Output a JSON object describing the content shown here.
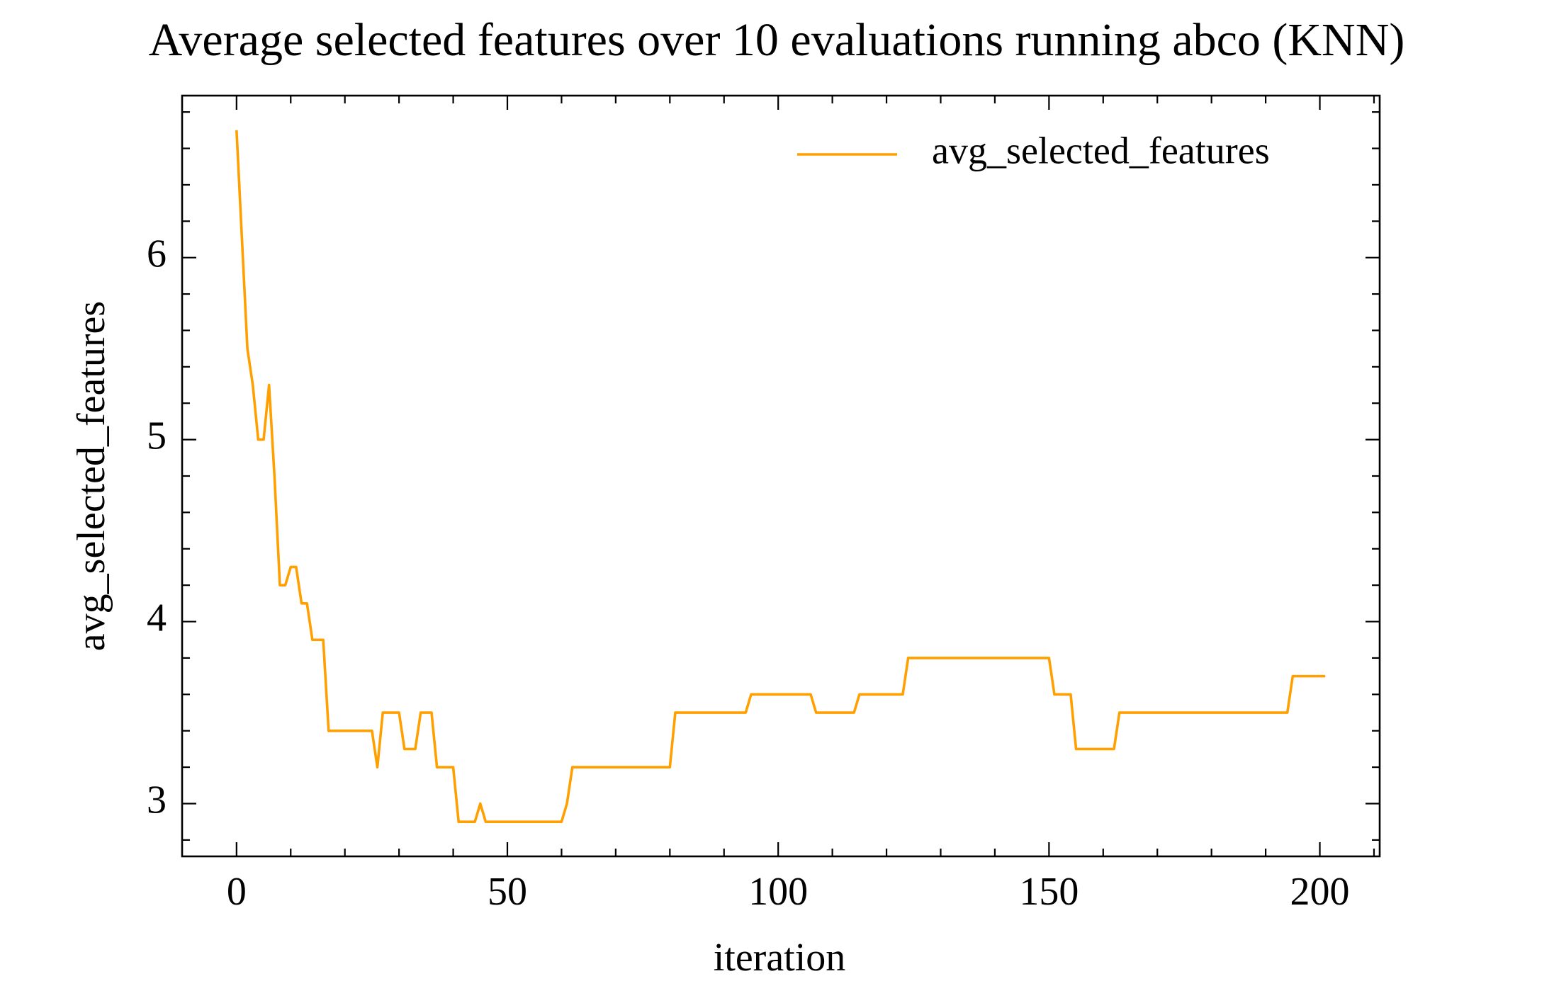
{
  "chart_data": {
    "type": "line",
    "title": "Average selected features over 10 evaluations running abco (KNN)",
    "xlabel": "iteration",
    "ylabel": "avg_selected_features",
    "x": [
      0,
      1,
      2,
      3,
      4,
      5,
      6,
      7,
      8,
      9,
      10,
      11,
      12,
      13,
      14,
      15,
      16,
      17,
      18,
      19,
      20,
      21,
      22,
      23,
      24,
      25,
      26,
      27,
      28,
      29,
      30,
      31,
      32,
      33,
      34,
      35,
      36,
      37,
      38,
      39,
      40,
      41,
      42,
      43,
      44,
      45,
      46,
      47,
      48,
      49,
      50,
      51,
      52,
      53,
      54,
      55,
      56,
      57,
      58,
      59,
      60,
      61,
      62,
      63,
      64,
      65,
      66,
      67,
      68,
      69,
      70,
      71,
      72,
      73,
      74,
      75,
      76,
      77,
      78,
      79,
      80,
      81,
      82,
      83,
      84,
      85,
      86,
      87,
      88,
      89,
      90,
      91,
      92,
      93,
      94,
      95,
      96,
      97,
      98,
      99,
      100,
      101,
      102,
      103,
      104,
      105,
      106,
      107,
      108,
      109,
      110,
      111,
      112,
      113,
      114,
      115,
      116,
      117,
      118,
      119,
      120,
      121,
      122,
      123,
      124,
      125,
      126,
      127,
      128,
      129,
      130,
      131,
      132,
      133,
      134,
      135,
      136,
      137,
      138,
      139,
      140,
      141,
      142,
      143,
      144,
      145,
      146,
      147,
      148,
      149,
      150,
      151,
      152,
      153,
      154,
      155,
      156,
      157,
      158,
      159,
      160,
      161,
      162,
      163,
      164,
      165,
      166,
      167,
      168,
      169,
      170,
      171,
      172,
      173,
      174,
      175,
      176,
      177,
      178,
      179,
      180,
      181,
      182,
      183,
      184,
      185,
      186,
      187,
      188,
      189,
      190,
      191,
      192,
      193,
      194,
      195,
      196,
      197,
      198,
      199,
      200,
      201
    ],
    "series": [
      {
        "name": "avg_selected_features",
        "color": "#ff9f00",
        "values": [
          6.7,
          6.1,
          5.5,
          5.3,
          5.0,
          5.0,
          5.3,
          4.8,
          4.2,
          4.2,
          4.3,
          4.3,
          4.1,
          4.1,
          3.9,
          3.9,
          3.9,
          3.4,
          3.4,
          3.4,
          3.4,
          3.4,
          3.4,
          3.4,
          3.4,
          3.4,
          3.2,
          3.5,
          3.5,
          3.5,
          3.5,
          3.3,
          3.3,
          3.3,
          3.5,
          3.5,
          3.5,
          3.2,
          3.2,
          3.2,
          3.2,
          2.9,
          2.9,
          2.9,
          2.9,
          3.0,
          2.9,
          2.9,
          2.9,
          2.9,
          2.9,
          2.9,
          2.9,
          2.9,
          2.9,
          2.9,
          2.9,
          2.9,
          2.9,
          2.9,
          2.9,
          3.0,
          3.2,
          3.2,
          3.2,
          3.2,
          3.2,
          3.2,
          3.2,
          3.2,
          3.2,
          3.2,
          3.2,
          3.2,
          3.2,
          3.2,
          3.2,
          3.2,
          3.2,
          3.2,
          3.2,
          3.5,
          3.5,
          3.5,
          3.5,
          3.5,
          3.5,
          3.5,
          3.5,
          3.5,
          3.5,
          3.5,
          3.5,
          3.5,
          3.5,
          3.6,
          3.6,
          3.6,
          3.6,
          3.6,
          3.6,
          3.6,
          3.6,
          3.6,
          3.6,
          3.6,
          3.6,
          3.5,
          3.5,
          3.5,
          3.5,
          3.5,
          3.5,
          3.5,
          3.5,
          3.6,
          3.6,
          3.6,
          3.6,
          3.6,
          3.6,
          3.6,
          3.6,
          3.6,
          3.8,
          3.8,
          3.8,
          3.8,
          3.8,
          3.8,
          3.8,
          3.8,
          3.8,
          3.8,
          3.8,
          3.8,
          3.8,
          3.8,
          3.8,
          3.8,
          3.8,
          3.8,
          3.8,
          3.8,
          3.8,
          3.8,
          3.8,
          3.8,
          3.8,
          3.8,
          3.8,
          3.6,
          3.6,
          3.6,
          3.6,
          3.3,
          3.3,
          3.3,
          3.3,
          3.3,
          3.3,
          3.3,
          3.3,
          3.5,
          3.5,
          3.5,
          3.5,
          3.5,
          3.5,
          3.5,
          3.5,
          3.5,
          3.5,
          3.5,
          3.5,
          3.5,
          3.5,
          3.5,
          3.5,
          3.5,
          3.5,
          3.5,
          3.5,
          3.5,
          3.5,
          3.5,
          3.5,
          3.5,
          3.5,
          3.5,
          3.5,
          3.5,
          3.5,
          3.5,
          3.5,
          3.7,
          3.7,
          3.7,
          3.7,
          3.7,
          3.7,
          3.7
        ]
      }
    ],
    "xlim": [
      -10.05,
      211.05
    ],
    "ylim": [
      2.71,
      6.89
    ],
    "xticks": [
      0,
      50,
      100,
      150,
      200
    ],
    "yticks": [
      3,
      4,
      5,
      6
    ],
    "xminorticks": [
      10,
      20,
      30,
      40,
      60,
      70,
      80,
      90,
      110,
      120,
      130,
      140,
      160,
      170,
      180,
      190,
      210
    ],
    "yminorticks": [
      2.8,
      3.2,
      3.4,
      3.6,
      3.8,
      4.2,
      4.4,
      4.6,
      4.8,
      5.2,
      5.4,
      5.6,
      5.8,
      6.2,
      6.4,
      6.6,
      6.8
    ],
    "legend": "upper right"
  }
}
